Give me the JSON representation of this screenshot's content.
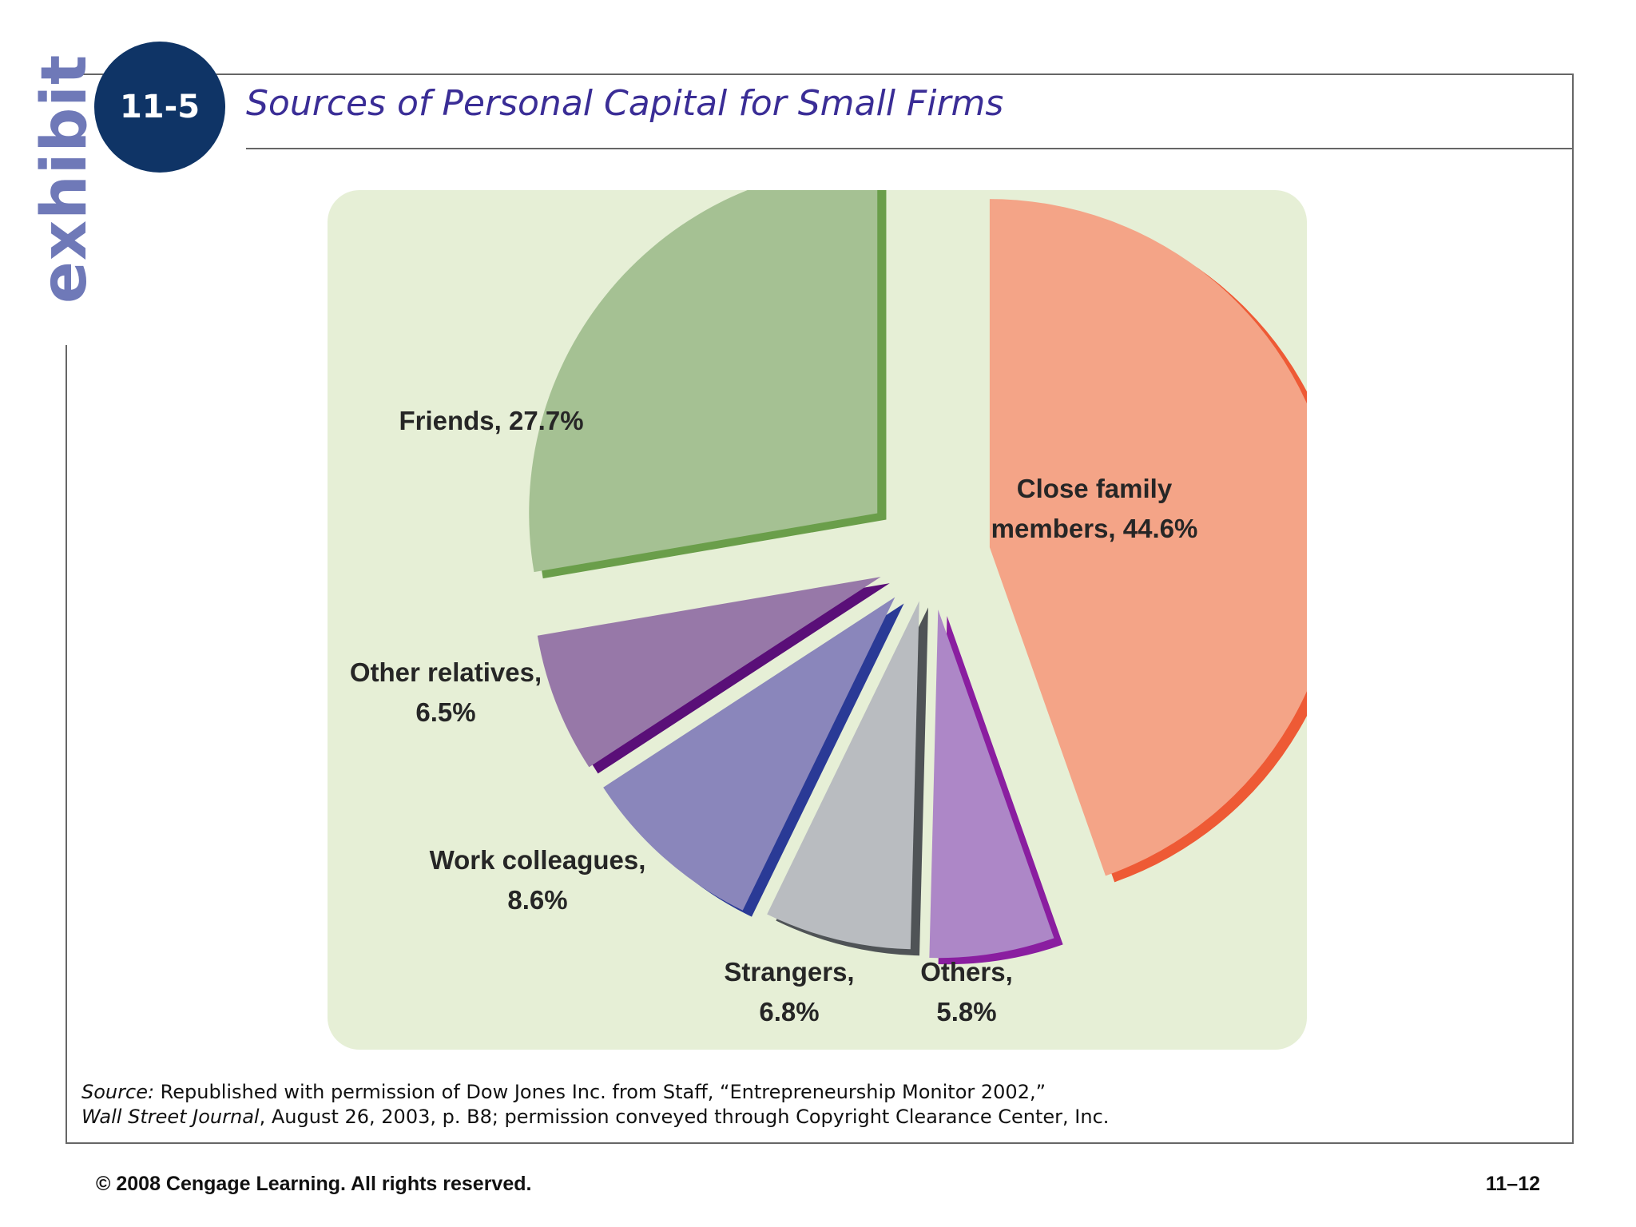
{
  "exhibit": {
    "word": "exhibit",
    "number": "11-5",
    "title": "Sources of Personal Capital for Small Firms"
  },
  "chart_data": {
    "type": "pie",
    "title": "Sources of Personal Capital for Small Firms",
    "slices": [
      {
        "label_lines": [
          "Close family",
          "members, 44.6%"
        ],
        "name": "Close family members",
        "value": 44.6,
        "color": "#f4a487",
        "edge_color": "#ee5a35"
      },
      {
        "label_lines": [
          "Others,",
          "5.8%"
        ],
        "name": "Others",
        "value": 5.8,
        "color": "#ad87c7",
        "edge_color": "#8a1ea0"
      },
      {
        "label_lines": [
          "Strangers,",
          "6.8%"
        ],
        "name": "Strangers",
        "value": 6.8,
        "color": "#b9bcc0",
        "edge_color": "#4f5356"
      },
      {
        "label_lines": [
          "Work colleagues,",
          "8.6%"
        ],
        "name": "Work colleagues",
        "value": 8.6,
        "color": "#8a86bb",
        "edge_color": "#2a3a96"
      },
      {
        "label_lines": [
          "Other relatives,",
          "6.5%"
        ],
        "name": "Other relatives",
        "value": 6.5,
        "color": "#9778a8",
        "edge_color": "#5a0f78"
      },
      {
        "label_lines": [
          "Friends, 27.7%"
        ],
        "name": "Friends",
        "value": 27.7,
        "color": "#a5c193",
        "edge_color": "#6a9e4a"
      }
    ]
  },
  "source": {
    "prefix": "Source:",
    "line1": " Republished with permission of Dow Jones Inc. from Staff, “Entrepreneurship Monitor 2002,”",
    "journal": "Wall Street Journal",
    "line2": ", August 26, 2003, p. B8; permission conveyed through Copyright Clearance Center, Inc."
  },
  "footer": {
    "copyright": "© 2008 Cengage Learning. All rights reserved.",
    "page": "11–12"
  }
}
